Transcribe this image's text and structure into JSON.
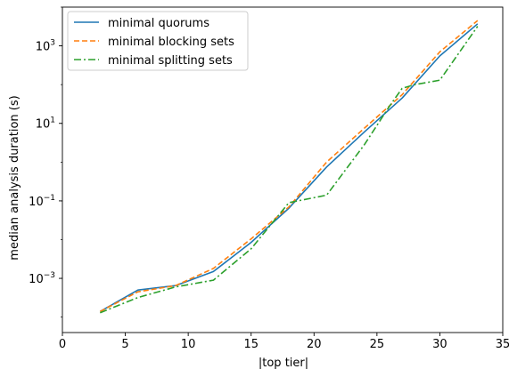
{
  "chart_data": {
    "type": "line",
    "title": "",
    "xlabel": "|top tier|",
    "ylabel": "median analysis duration (s)",
    "xlim": [
      0,
      35
    ],
    "ylim": [
      4e-05,
      10000
    ],
    "yscale": "log",
    "grid": false,
    "legend_position": "top-left",
    "x_ticks": [
      0,
      5,
      10,
      15,
      20,
      25,
      30,
      35
    ],
    "x_tick_labels": [
      "0",
      "5",
      "10",
      "15",
      "20",
      "25",
      "30",
      "35"
    ],
    "y_ticks": [
      0.001,
      0.1,
      10,
      1000
    ],
    "y_tick_labels": [
      {
        "base": "10",
        "exp": "−3"
      },
      {
        "base": "10",
        "exp": "−1"
      },
      {
        "base": "10",
        "exp": "1"
      },
      {
        "base": "10",
        "exp": "3"
      }
    ],
    "series": [
      {
        "name": "minimal quorums",
        "color": "#1f77b4",
        "style": "solid",
        "x": [
          3,
          6,
          9,
          12,
          15,
          18,
          21,
          24,
          27,
          30,
          33
        ],
        "y": [
          0.00014,
          0.0005,
          0.00065,
          0.0015,
          0.0085,
          0.065,
          0.75,
          6,
          45,
          550,
          3700
        ]
      },
      {
        "name": "minimal blocking sets",
        "color": "#ff7f0e",
        "style": "dashed",
        "x": [
          3,
          6,
          9,
          12,
          15,
          18,
          21,
          24,
          27,
          30,
          33
        ],
        "y": [
          0.00014,
          0.00045,
          0.00065,
          0.0018,
          0.0105,
          0.07,
          1.0,
          7.5,
          55,
          700,
          4500
        ]
      },
      {
        "name": "minimal splitting sets",
        "color": "#2ca02c",
        "style": "dashdot",
        "x": [
          3,
          6,
          9,
          12,
          15,
          18,
          21,
          24,
          26,
          27,
          28,
          30,
          33
        ],
        "y": [
          0.00013,
          0.00032,
          0.0006,
          0.0009,
          0.0058,
          0.09,
          0.14,
          2.8,
          28,
          80,
          100,
          130,
          3200
        ]
      }
    ]
  }
}
